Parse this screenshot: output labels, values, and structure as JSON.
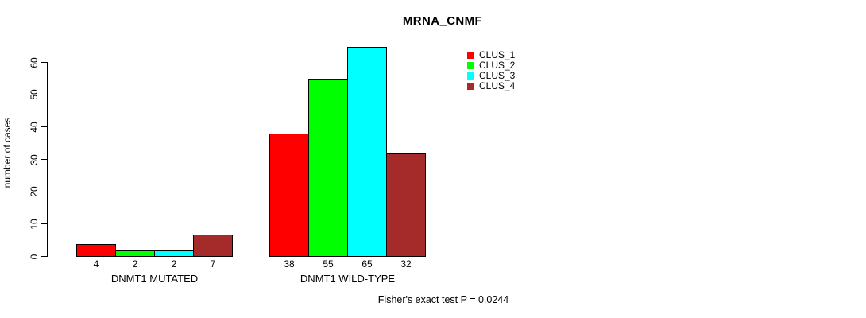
{
  "title": "MRNA_CNMF",
  "footer_note": "Fisher's exact test P = 0.0244",
  "y_axis": {
    "label": "number of cases",
    "ticks": [
      0,
      10,
      20,
      30,
      40,
      50,
      60
    ]
  },
  "legend": {
    "items": [
      {
        "label": "CLUS_1",
        "color": "#FF0000"
      },
      {
        "label": "CLUS_2",
        "color": "#00FF00"
      },
      {
        "label": "CLUS_3",
        "color": "#00FFFF"
      },
      {
        "label": "CLUS_4",
        "color": "#A52A2A"
      }
    ]
  },
  "chart_data": {
    "type": "bar",
    "title": "MRNA_CNMF",
    "xlabel": "",
    "ylabel": "number of cases",
    "ylim": [
      0,
      65
    ],
    "grid": false,
    "legend_position": "top-right-inside",
    "categories": [
      "DNMT1 MUTATED",
      "DNMT1 WILD-TYPE"
    ],
    "series": [
      {
        "name": "CLUS_1",
        "color": "#FF0000",
        "values": [
          4,
          38
        ]
      },
      {
        "name": "CLUS_2",
        "color": "#00FF00",
        "values": [
          2,
          55
        ]
      },
      {
        "name": "CLUS_3",
        "color": "#00FFFF",
        "values": [
          2,
          65
        ]
      },
      {
        "name": "CLUS_4",
        "color": "#A52A2A",
        "values": [
          7,
          32
        ]
      }
    ],
    "bar_value_labels": [
      [
        4,
        2,
        2,
        7
      ],
      [
        38,
        55,
        65,
        32
      ]
    ],
    "annotation": "Fisher's exact test P = 0.0244"
  }
}
